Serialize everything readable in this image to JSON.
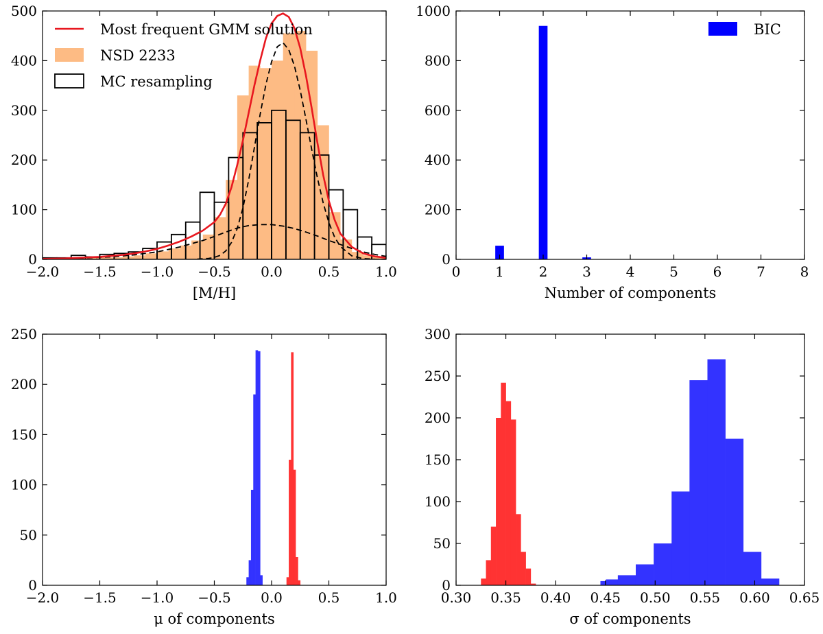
{
  "chart_data": [
    {
      "id": "mh",
      "type": "bar",
      "title": "",
      "xlabel": "[M/H]",
      "ylabel": "",
      "xlim": [
        -2.0,
        1.0
      ],
      "ylim": [
        0,
        500
      ],
      "xticks": [
        "−2.0",
        "−1.5",
        "−1.0",
        "−0.5",
        "0.0",
        "0.5",
        "1.0"
      ],
      "xtick_values": [
        -2.0,
        -1.5,
        -1.0,
        -0.5,
        0.0,
        0.5,
        1.0
      ],
      "yticks": [
        "0",
        "100",
        "200",
        "300",
        "400",
        "500"
      ],
      "ytick_values": [
        0,
        100,
        200,
        300,
        400,
        500
      ],
      "grid": false,
      "legend_position": "top-left",
      "legend": [
        {
          "label": "Most frequent GMM solution",
          "style": "line",
          "color": "#e8171f"
        },
        {
          "label": "NSD 2233",
          "style": "patch",
          "color": "#fdbb84"
        },
        {
          "label": "MC resampling",
          "style": "outline",
          "color": "#000000"
        }
      ],
      "series": [
        {
          "kind": "hist-filled",
          "color": "#fdbb84",
          "bin_edges": [
            -2.0,
            -1.9,
            -1.8,
            -1.7,
            -1.6,
            -1.5,
            -1.4,
            -1.3,
            -1.2,
            -1.1,
            -1.0,
            -0.9,
            -0.8,
            -0.7,
            -0.6,
            -0.5,
            -0.4,
            -0.3,
            -0.2,
            -0.1,
            0.0,
            0.1,
            0.2,
            0.3,
            0.4,
            0.5,
            0.6,
            0.7,
            0.8,
            0.9,
            1.0
          ],
          "values": [
            2,
            2,
            2,
            3,
            3,
            4,
            4,
            6,
            8,
            12,
            16,
            22,
            28,
            38,
            50,
            85,
            160,
            330,
            390,
            385,
            400,
            455,
            460,
            420,
            270,
            95,
            40,
            15,
            8,
            5
          ]
        },
        {
          "kind": "hist-step",
          "color": "#000000",
          "bin_edges": [
            -2.0,
            -1.875,
            -1.75,
            -1.625,
            -1.5,
            -1.375,
            -1.25,
            -1.125,
            -1.0,
            -0.875,
            -0.75,
            -0.625,
            -0.5,
            -0.375,
            -0.25,
            -0.125,
            0.0,
            0.125,
            0.25,
            0.375,
            0.5,
            0.625,
            0.75,
            0.875,
            1.0
          ],
          "values": [
            3,
            3,
            8,
            5,
            10,
            12,
            15,
            22,
            35,
            50,
            75,
            135,
            115,
            205,
            255,
            275,
            300,
            280,
            255,
            210,
            140,
            100,
            45,
            30
          ]
        },
        {
          "kind": "curve-total",
          "color": "#e8171f",
          "x": [
            -2.0,
            -1.9,
            -1.8,
            -1.7,
            -1.6,
            -1.5,
            -1.4,
            -1.3,
            -1.2,
            -1.1,
            -1.0,
            -0.9,
            -0.8,
            -0.7,
            -0.6,
            -0.5,
            -0.45,
            -0.4,
            -0.35,
            -0.3,
            -0.25,
            -0.2,
            -0.15,
            -0.1,
            -0.05,
            0.0,
            0.05,
            0.1,
            0.15,
            0.2,
            0.25,
            0.3,
            0.35,
            0.4,
            0.45,
            0.5,
            0.55,
            0.6,
            0.7,
            0.8,
            0.9,
            1.0
          ],
          "y": [
            1,
            1.5,
            2,
            3,
            4,
            5,
            7,
            9,
            12,
            16,
            21,
            28,
            36,
            46,
            58,
            75,
            90,
            112,
            145,
            190,
            240,
            295,
            350,
            400,
            445,
            475,
            490,
            495,
            488,
            465,
            425,
            370,
            305,
            235,
            170,
            118,
            80,
            52,
            25,
            12,
            6,
            3
          ]
        },
        {
          "kind": "curve-component",
          "color": "#000000",
          "dash": true,
          "x": [
            -2.0,
            -1.8,
            -1.6,
            -1.4,
            -1.2,
            -1.0,
            -0.8,
            -0.6,
            -0.5,
            -0.4,
            -0.3,
            -0.2,
            -0.1,
            0.0,
            0.1,
            0.2,
            0.3,
            0.4,
            0.5,
            0.6,
            0.7,
            0.8,
            0.9,
            1.0
          ],
          "y": [
            1,
            2,
            3,
            5,
            9,
            15,
            25,
            38,
            46,
            55,
            63,
            68,
            70,
            70,
            67,
            62,
            55,
            47,
            38,
            30,
            22,
            15,
            10,
            6
          ]
        },
        {
          "kind": "curve-component",
          "color": "#000000",
          "dash": true,
          "x": [
            -0.65,
            -0.55,
            -0.5,
            -0.45,
            -0.4,
            -0.35,
            -0.3,
            -0.25,
            -0.2,
            -0.15,
            -0.1,
            -0.05,
            0.0,
            0.05,
            0.1,
            0.15,
            0.2,
            0.25,
            0.3,
            0.35,
            0.4,
            0.45,
            0.5,
            0.55,
            0.6,
            0.7,
            0.8,
            0.9,
            1.0
          ],
          "y": [
            0.5,
            2,
            4,
            8,
            17,
            34,
            62,
            104,
            160,
            225,
            292,
            352,
            398,
            428,
            436,
            422,
            389,
            340,
            282,
            222,
            164,
            114,
            74,
            45,
            26,
            7,
            1.5,
            0.3,
            0.1
          ]
        }
      ]
    },
    {
      "id": "bic",
      "type": "bar",
      "title": "",
      "xlabel": "Number of components",
      "ylabel": "",
      "xlim": [
        0,
        8
      ],
      "ylim": [
        0,
        1000
      ],
      "xticks": [
        "0",
        "1",
        "2",
        "3",
        "4",
        "5",
        "6",
        "7",
        "8"
      ],
      "xtick_values": [
        0,
        1,
        2,
        3,
        4,
        5,
        6,
        7,
        8
      ],
      "yticks": [
        "0",
        "200",
        "400",
        "600",
        "800",
        "1000"
      ],
      "ytick_values": [
        0,
        200,
        400,
        600,
        800,
        1000
      ],
      "grid": false,
      "legend_position": "top-right",
      "legend": [
        {
          "label": "BIC",
          "style": "patch",
          "color": "#0000ff"
        }
      ],
      "series": [
        {
          "kind": "bars",
          "color": "#0000ff",
          "width": 0.2,
          "x": [
            1,
            2,
            3
          ],
          "values": [
            55,
            940,
            8
          ]
        }
      ]
    },
    {
      "id": "mu",
      "type": "bar",
      "title": "",
      "xlabel": "μ of components",
      "ylabel": "",
      "xlim": [
        -2.0,
        1.0
      ],
      "ylim": [
        0,
        250
      ],
      "xticks": [
        "−2.0",
        "−1.5",
        "−1.0",
        "−0.5",
        "0.0",
        "0.5",
        "1.0"
      ],
      "xtick_values": [
        -2.0,
        -1.5,
        -1.0,
        -0.5,
        0.0,
        0.5,
        1.0
      ],
      "yticks": [
        "0",
        "50",
        "100",
        "150",
        "200",
        "250"
      ],
      "ytick_values": [
        0,
        50,
        100,
        150,
        200,
        250
      ],
      "grid": false,
      "legend_position": "",
      "legend": [],
      "series": [
        {
          "kind": "hist-filled",
          "color": "#3333ff",
          "bin_edges": [
            -0.22,
            -0.2,
            -0.18,
            -0.16,
            -0.14,
            -0.12,
            -0.1,
            -0.08
          ],
          "values": [
            8,
            25,
            95,
            190,
            234,
            233,
            10
          ]
        },
        {
          "kind": "hist-filled",
          "color": "#ff3333",
          "bin_edges": [
            0.13,
            0.15,
            0.17,
            0.19,
            0.21,
            0.23,
            0.25
          ],
          "values": [
            8,
            125,
            232,
            115,
            28,
            5
          ]
        }
      ]
    },
    {
      "id": "sigma",
      "type": "bar",
      "title": "",
      "xlabel": "σ of components",
      "ylabel": "",
      "xlim": [
        0.3,
        0.65
      ],
      "ylim": [
        0,
        300
      ],
      "xticks": [
        "0.30",
        "0.35",
        "0.40",
        "0.45",
        "0.50",
        "0.55",
        "0.60",
        "0.65"
      ],
      "xtick_values": [
        0.3,
        0.35,
        0.4,
        0.45,
        0.5,
        0.55,
        0.6,
        0.65
      ],
      "yticks": [
        "0",
        "50",
        "100",
        "150",
        "200",
        "250",
        "300"
      ],
      "ytick_values": [
        0,
        50,
        100,
        150,
        200,
        250,
        300
      ],
      "grid": false,
      "legend_position": "",
      "legend": [],
      "series": [
        {
          "kind": "hist-filled",
          "color": "#ff3333",
          "bin_edges": [
            0.325,
            0.33,
            0.335,
            0.34,
            0.345,
            0.35,
            0.355,
            0.36,
            0.365,
            0.37,
            0.375,
            0.38
          ],
          "values": [
            8,
            30,
            70,
            200,
            242,
            220,
            198,
            85,
            40,
            20,
            2
          ]
        },
        {
          "kind": "hist-filled",
          "color": "#3333ff",
          "bin_edges": [
            0.445,
            0.4505,
            0.4625,
            0.4805,
            0.4985,
            0.5165,
            0.5345,
            0.5525,
            0.5705,
            0.5885,
            0.6065,
            0.6245
          ],
          "values": [
            5,
            7,
            12,
            25,
            50,
            112,
            245,
            270,
            175,
            40,
            8
          ]
        }
      ]
    }
  ]
}
